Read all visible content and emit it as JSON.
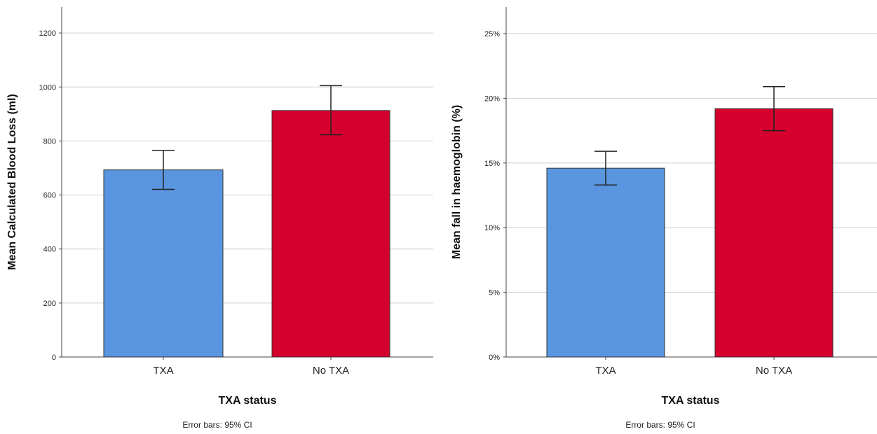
{
  "chart_data": [
    {
      "type": "bar",
      "categories": [
        "TXA",
        "No TXA"
      ],
      "values": [
        693,
        913
      ],
      "error_bars": {
        "lower": [
          621,
          823
        ],
        "upper": [
          765,
          1005
        ]
      },
      "ylabel": "Mean Calculated Blood Loss (ml)",
      "xlabel": "TXA status",
      "note": "Error bars: 95% CI",
      "ylim": [
        0,
        1260
      ],
      "yticks": [
        0,
        200,
        400,
        600,
        800,
        1000,
        1200
      ],
      "ytick_labels": [
        "0",
        "200",
        "400",
        "600",
        "800",
        "1000",
        "1200"
      ],
      "grid": true,
      "colors": [
        "#5a95e0",
        "#d5002e"
      ]
    },
    {
      "type": "bar",
      "categories": [
        "TXA",
        "No TXA"
      ],
      "values": [
        14.6,
        19.2
      ],
      "error_bars": {
        "lower": [
          13.3,
          17.5
        ],
        "upper": [
          15.9,
          20.9
        ]
      },
      "ylabel": "Mean fall in haemoglobin (%)",
      "xlabel": "TXA status",
      "note": "Error bars: 95% CI",
      "ylim": [
        0,
        26.3
      ],
      "yticks": [
        0,
        5,
        10,
        15,
        20,
        25
      ],
      "ytick_labels": [
        "0%",
        "5%",
        "10%",
        "15%",
        "20%",
        "25%"
      ],
      "grid": true,
      "colors": [
        "#5a95e0",
        "#d5002e"
      ]
    }
  ]
}
